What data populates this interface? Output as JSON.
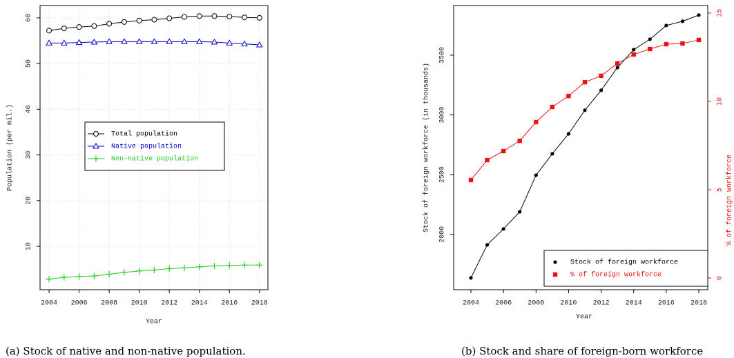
{
  "chart_data": [
    {
      "type": "line",
      "caption": "(a) Stock of native and non-native population.",
      "xlabel": "Year",
      "ylabel": "Population (per mil.)",
      "x": [
        2004,
        2005,
        2006,
        2007,
        2008,
        2009,
        2010,
        2011,
        2012,
        2013,
        2014,
        2015,
        2016,
        2017,
        2018
      ],
      "xlim": [
        2003.4,
        2018.56
      ],
      "xticks": [
        2004,
        2006,
        2008,
        2010,
        2012,
        2014,
        2016,
        2018
      ],
      "ylim": [
        0.5,
        62.7
      ],
      "yticks": [
        10,
        20,
        30,
        40,
        50,
        60
      ],
      "grid": true,
      "legend": "center",
      "series": [
        {
          "name": "Total population",
          "color": "#000000",
          "marker": "circle",
          "values": [
            57.2,
            57.7,
            58.0,
            58.2,
            58.7,
            59.1,
            59.4,
            59.6,
            59.9,
            60.2,
            60.4,
            60.4,
            60.3,
            60.1,
            60.0
          ]
        },
        {
          "name": "Native population",
          "color": "#0000cc",
          "marker": "triangle",
          "values": [
            54.5,
            54.5,
            54.6,
            54.7,
            54.8,
            54.8,
            54.8,
            54.8,
            54.8,
            54.8,
            54.8,
            54.7,
            54.5,
            54.3,
            54.1
          ]
        },
        {
          "name": "Non-native population",
          "color": "#22cc22",
          "marker": "plus",
          "values": [
            2.8,
            3.2,
            3.4,
            3.5,
            3.9,
            4.3,
            4.6,
            4.8,
            5.1,
            5.3,
            5.5,
            5.7,
            5.8,
            5.9,
            5.9
          ]
        }
      ]
    },
    {
      "type": "line",
      "caption": "(b) Stock and share of foreign-born workforce",
      "xlabel": "Year",
      "ylabel": "Stock of foreign workforce (in thousands)",
      "y2label": "% of foreign workforce",
      "x": [
        2004,
        2005,
        2006,
        2007,
        2008,
        2009,
        2010,
        2011,
        2012,
        2013,
        2014,
        2015,
        2016,
        2017,
        2018
      ],
      "xlim": [
        2002.94,
        2018.55
      ],
      "xticks": [
        2004,
        2006,
        2008,
        2010,
        2012,
        2014,
        2016,
        2018
      ],
      "ylim": [
        1538,
        3915
      ],
      "yticks": [
        2000,
        2500,
        3000,
        3500
      ],
      "y2lim": [
        -0.66,
        15.43
      ],
      "y2ticks": [
        0,
        5,
        10,
        15
      ],
      "grid": false,
      "legend": "bottom right",
      "series": [
        {
          "name": "Stock of foreign workforce",
          "color": "#000000",
          "marker": "dot",
          "values": [
            1637,
            1913,
            2046,
            2190,
            2496,
            2675,
            2842,
            3039,
            3206,
            3396,
            3546,
            3633,
            3748,
            3783,
            3835
          ]
        },
        {
          "name": "% of foreign workforce",
          "color": "#ee1111",
          "marker": "square",
          "axis": "y2",
          "values": [
            5.55,
            6.68,
            7.19,
            7.77,
            8.83,
            9.69,
            10.31,
            11.09,
            11.45,
            12.15,
            12.66,
            12.97,
            13.24,
            13.28,
            13.48
          ]
        }
      ]
    }
  ]
}
